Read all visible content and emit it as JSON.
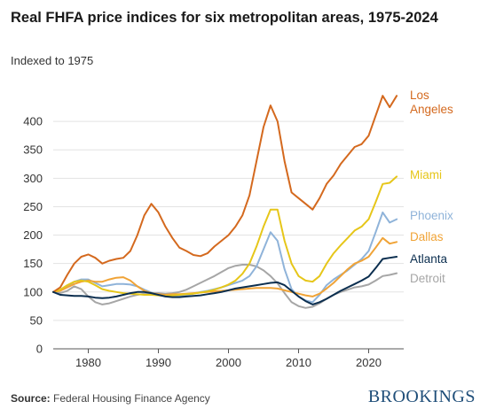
{
  "title": "Real FHFA price indices for six metropolitan areas, 1975-2024",
  "subtitle": "Indexed to 1975",
  "source_label": "Source:",
  "source_text": "Federal Housing Finance Agency",
  "brand": "BROOKINGS",
  "chart_data": {
    "type": "line",
    "title": "Real FHFA price indices for six metropolitan areas, 1975-2024",
    "subtitle": "Indexed to 1975",
    "xlabel": "",
    "ylabel": "",
    "xlim": [
      1975,
      2025
    ],
    "ylim": [
      0,
      450
    ],
    "x_ticks": [
      1980,
      1990,
      2000,
      2010,
      2020
    ],
    "y_ticks": [
      0,
      50,
      100,
      150,
      200,
      250,
      300,
      350,
      400
    ],
    "grid": "horizontal",
    "legend": "direct labels at right end of lines",
    "series": [
      {
        "name": "Los Angeles",
        "label_lines": [
          "Los",
          "Angeles"
        ],
        "color": "#d4691e",
        "x": [
          1975,
          1976,
          1977,
          1978,
          1979,
          1980,
          1981,
          1982,
          1983,
          1984,
          1985,
          1986,
          1987,
          1988,
          1989,
          1990,
          1991,
          1992,
          1993,
          1994,
          1995,
          1996,
          1997,
          1998,
          1999,
          2000,
          2001,
          2002,
          2003,
          2004,
          2005,
          2006,
          2007,
          2008,
          2009,
          2010,
          2011,
          2012,
          2013,
          2014,
          2015,
          2016,
          2017,
          2018,
          2019,
          2020,
          2021,
          2022,
          2023,
          2024
        ],
        "y": [
          100,
          108,
          130,
          150,
          162,
          166,
          160,
          150,
          155,
          158,
          160,
          172,
          200,
          235,
          255,
          240,
          215,
          195,
          178,
          172,
          165,
          163,
          168,
          180,
          190,
          200,
          215,
          235,
          270,
          330,
          390,
          428,
          400,
          330,
          275,
          265,
          255,
          245,
          265,
          290,
          305,
          325,
          340,
          355,
          360,
          375,
          410,
          445,
          425,
          445
        ]
      },
      {
        "name": "Miami",
        "label_lines": [
          "Miami"
        ],
        "color": "#e6c619",
        "x": [
          1975,
          1976,
          1977,
          1978,
          1979,
          1980,
          1981,
          1982,
          1983,
          1984,
          1985,
          1986,
          1987,
          1988,
          1989,
          1990,
          1991,
          1992,
          1993,
          1994,
          1995,
          1996,
          1997,
          1998,
          1999,
          2000,
          2001,
          2002,
          2003,
          2004,
          2005,
          2006,
          2007,
          2008,
          2009,
          2010,
          2011,
          2012,
          2013,
          2014,
          2015,
          2016,
          2017,
          2018,
          2019,
          2020,
          2021,
          2022,
          2023,
          2024
        ],
        "y": [
          100,
          104,
          112,
          118,
          120,
          118,
          112,
          105,
          102,
          100,
          98,
          97,
          96,
          95,
          95,
          94,
          93,
          94,
          95,
          96,
          97,
          99,
          101,
          104,
          108,
          113,
          120,
          132,
          150,
          180,
          215,
          245,
          245,
          190,
          150,
          128,
          120,
          118,
          128,
          150,
          168,
          182,
          195,
          208,
          215,
          228,
          258,
          290,
          292,
          303
        ]
      },
      {
        "name": "Phoenix",
        "label_lines": [
          "Phoenix"
        ],
        "color": "#8fb3d9",
        "x": [
          1975,
          1976,
          1977,
          1978,
          1979,
          1980,
          1981,
          1982,
          1983,
          1984,
          1985,
          1986,
          1987,
          1988,
          1989,
          1990,
          1991,
          1992,
          1993,
          1994,
          1995,
          1996,
          1997,
          1998,
          1999,
          2000,
          2001,
          2002,
          2003,
          2004,
          2005,
          2006,
          2007,
          2008,
          2009,
          2010,
          2011,
          2012,
          2013,
          2014,
          2015,
          2016,
          2017,
          2018,
          2019,
          2020,
          2021,
          2022,
          2023,
          2024
        ],
        "y": [
          100,
          102,
          110,
          118,
          122,
          122,
          116,
          110,
          112,
          114,
          114,
          113,
          110,
          104,
          99,
          95,
          94,
          93,
          93,
          95,
          97,
          100,
          102,
          105,
          108,
          112,
          116,
          120,
          128,
          145,
          175,
          205,
          190,
          140,
          105,
          92,
          85,
          82,
          95,
          112,
          122,
          130,
          138,
          148,
          158,
          172,
          205,
          240,
          222,
          228
        ]
      },
      {
        "name": "Dallas",
        "label_lines": [
          "Dallas"
        ],
        "color": "#f0a336",
        "x": [
          1975,
          1976,
          1977,
          1978,
          1979,
          1980,
          1981,
          1982,
          1983,
          1984,
          1985,
          1986,
          1987,
          1988,
          1989,
          1990,
          1991,
          1992,
          1993,
          1994,
          1995,
          1996,
          1997,
          1998,
          1999,
          2000,
          2001,
          2002,
          2003,
          2004,
          2005,
          2006,
          2007,
          2008,
          2009,
          2010,
          2011,
          2012,
          2013,
          2014,
          2015,
          2016,
          2017,
          2018,
          2019,
          2020,
          2021,
          2022,
          2023,
          2024
        ],
        "y": [
          100,
          102,
          108,
          114,
          118,
          120,
          118,
          118,
          122,
          125,
          126,
          120,
          110,
          102,
          98,
          96,
          95,
          96,
          96,
          97,
          98,
          99,
          100,
          101,
          102,
          103,
          104,
          105,
          106,
          107,
          107,
          107,
          106,
          103,
          100,
          97,
          94,
          92,
          97,
          106,
          116,
          128,
          140,
          150,
          155,
          162,
          178,
          195,
          185,
          188
        ]
      },
      {
        "name": "Atlanta",
        "label_lines": [
          "Atlanta"
        ],
        "color": "#0b2e4f",
        "x": [
          1975,
          1976,
          1977,
          1978,
          1979,
          1980,
          1981,
          1982,
          1983,
          1984,
          1985,
          1986,
          1987,
          1988,
          1989,
          1990,
          1991,
          1992,
          1993,
          1994,
          1995,
          1996,
          1997,
          1998,
          1999,
          2000,
          2001,
          2002,
          2003,
          2004,
          2005,
          2006,
          2007,
          2008,
          2009,
          2010,
          2011,
          2012,
          2013,
          2014,
          2015,
          2016,
          2017,
          2018,
          2019,
          2020,
          2021,
          2022,
          2023,
          2024
        ],
        "y": [
          100,
          95,
          94,
          93,
          93,
          92,
          90,
          89,
          90,
          92,
          95,
          98,
          100,
          100,
          98,
          95,
          92,
          91,
          91,
          92,
          93,
          94,
          96,
          98,
          100,
          103,
          106,
          108,
          110,
          112,
          114,
          116,
          117,
          112,
          102,
          92,
          84,
          78,
          82,
          88,
          95,
          102,
          108,
          114,
          120,
          127,
          142,
          158,
          160,
          162
        ]
      },
      {
        "name": "Detroit",
        "label_lines": [
          "Detroit"
        ],
        "color": "#a6a6a6",
        "x": [
          1975,
          1976,
          1977,
          1978,
          1979,
          1980,
          1981,
          1982,
          1983,
          1984,
          1985,
          1986,
          1987,
          1988,
          1989,
          1990,
          1991,
          1992,
          1993,
          1994,
          1995,
          1996,
          1997,
          1998,
          1999,
          2000,
          2001,
          2002,
          2003,
          2004,
          2005,
          2006,
          2007,
          2008,
          2009,
          2010,
          2011,
          2012,
          2013,
          2014,
          2015,
          2016,
          2017,
          2018,
          2019,
          2020,
          2021,
          2022,
          2023,
          2024
        ],
        "y": [
          100,
          98,
          102,
          110,
          105,
          92,
          82,
          78,
          80,
          84,
          88,
          92,
          95,
          97,
          98,
          98,
          97,
          98,
          100,
          104,
          110,
          116,
          122,
          128,
          135,
          142,
          146,
          148,
          148,
          145,
          138,
          128,
          115,
          98,
          82,
          75,
          72,
          74,
          80,
          88,
          95,
          100,
          104,
          108,
          110,
          113,
          120,
          128,
          130,
          133
        ]
      }
    ]
  }
}
